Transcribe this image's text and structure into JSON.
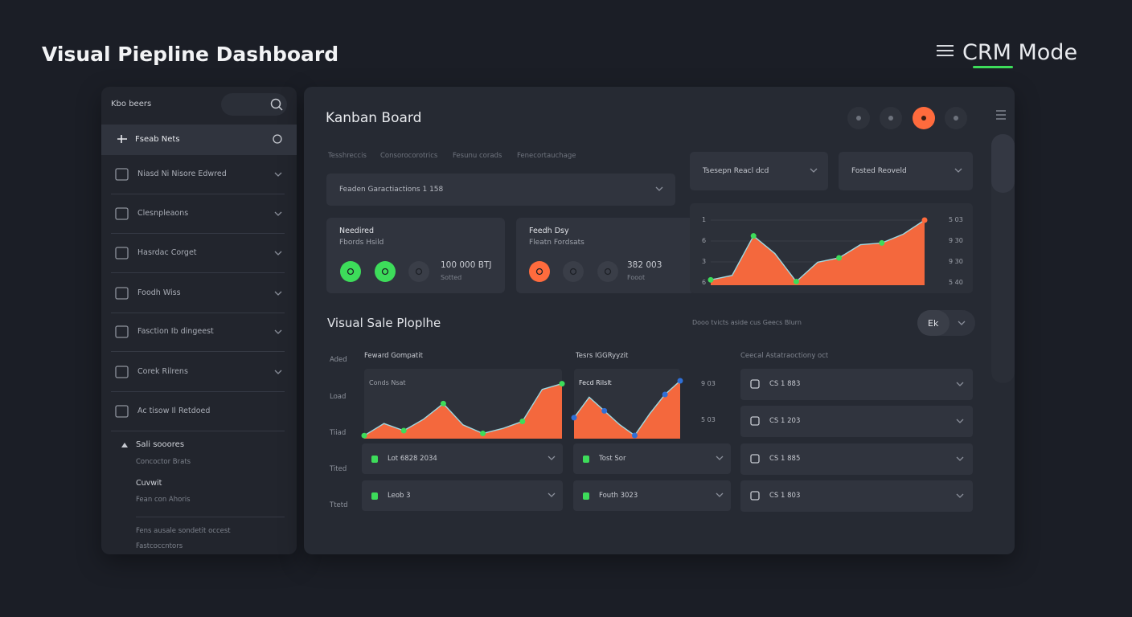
{
  "header": {
    "title": "Visual Piepline Dashboard",
    "mode": "CRM Mode"
  },
  "sidebar": {
    "search_label": "Kbo beers",
    "active_item": "Fseab Nets",
    "items": [
      "Niasd Ni Nisore Edwred",
      "Clesnpleaons",
      "Hasrdac Corget",
      "Foodh Wiss",
      "Fasction Ib dingeest",
      "Corek Rilrens",
      "Ac tisow Il Retdoed"
    ],
    "section_title": "Sali sooores",
    "section_items": [
      "Concoctor Brats",
      "Cuvwit",
      "Fean con Ahoris"
    ],
    "footer": [
      "Fens ausale sondetit occest",
      "Fastcoccntors"
    ]
  },
  "kanban": {
    "title": "Kanban Board",
    "tabs": [
      "Tesshreccis",
      "Consorocorotrics",
      "Fesunu corads",
      "Fenecortauchage"
    ],
    "filter": "Feaden Garactiactions 1 158",
    "cards": [
      {
        "title": "Needired",
        "subtitle": "Fbords Hsild",
        "value": "100 000 BTJ",
        "note": "Sotted"
      },
      {
        "title": "Feedh Dsy",
        "subtitle": "Fleatn Fordsats",
        "value": "382 003",
        "note": "Fooot"
      }
    ],
    "selects": [
      "Tsesepn Reacl dcd",
      "Fosted Reoveld"
    ],
    "trend": {
      "left_labels": [
        "1",
        "6",
        "3",
        "6"
      ],
      "right_labels": [
        "5 03",
        "9 30",
        "9 30",
        "5 40"
      ],
      "values": [
        10,
        15,
        60,
        40,
        8,
        30,
        35,
        50,
        52,
        62,
        78
      ],
      "colors": {
        "area": "#ff6b3d",
        "line": "#9fd8e0",
        "point": "#3ddc5a"
      }
    }
  },
  "pipeline": {
    "title": "Visual Sale Ploplhe",
    "caption": "Dooo tvicts aside cus Geecs Blurn",
    "toggle": "Ek",
    "row_labels": [
      "Aded",
      "Load",
      "Tiiad",
      "Tited",
      "Ttetd"
    ],
    "columns": [
      {
        "title": "Feward Gompatit",
        "chart_label": "Conds Nsat",
        "values": [
          5,
          22,
          12,
          28,
          50,
          20,
          8,
          15,
          25,
          70,
          78
        ],
        "colors": {
          "area": "#ff6b3d",
          "line": "#9fd8e0",
          "point": "#3ddc5a"
        },
        "rows": [
          "Lot 6828 2034",
          "Leob 3"
        ]
      },
      {
        "title": "Tesrs IGGRyyzit",
        "chart_label": "Fecd Rilslt",
        "side_labels": [
          "9 03",
          "5 03"
        ],
        "values": [
          55,
          70,
          60,
          50,
          42,
          58,
          72,
          82
        ],
        "colors": {
          "area": "#ff6b3d",
          "line": "#9fd8e0",
          "point": "#2f6fd6"
        },
        "rows": [
          "Tost Sor",
          "Fouth 3023"
        ]
      },
      {
        "title": "Ceecal Astatraoctiony oct",
        "rows": [
          "CS 1 883",
          "CS 1 203",
          "CS 1 885",
          "CS 1 803"
        ]
      }
    ]
  }
}
